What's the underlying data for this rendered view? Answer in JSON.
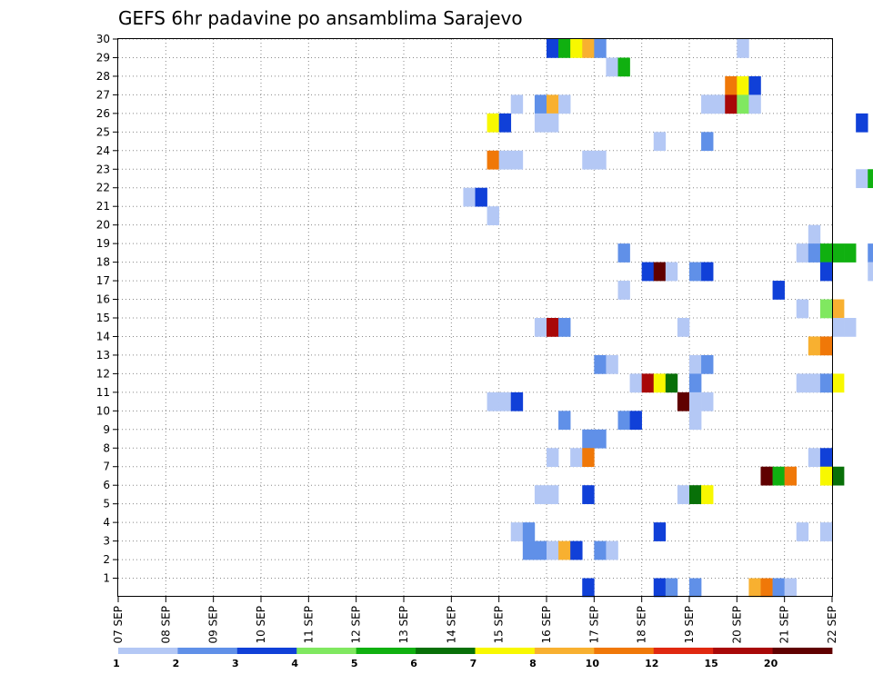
{
  "chart_data": {
    "type": "heatmap",
    "title": "GEFS 6hr padavine po ansamblima Sarajevo",
    "x_tick_labels": [
      "07 SEP",
      "08 SEP",
      "09 SEP",
      "10 SEP",
      "11 SEP",
      "12 SEP",
      "13 SEP",
      "14 SEP",
      "15 SEP",
      "16 SEP",
      "17 SEP",
      "18 SEP",
      "19 SEP",
      "20 SEP",
      "21 SEP",
      "22 SEP"
    ],
    "y_tick_labels": [
      "1",
      "2",
      "3",
      "4",
      "5",
      "6",
      "7",
      "8",
      "9",
      "10",
      "11",
      "12",
      "13",
      "14",
      "15",
      "16",
      "17",
      "18",
      "19",
      "20",
      "21",
      "22",
      "23",
      "24",
      "25",
      "26",
      "27",
      "28",
      "29",
      "30"
    ],
    "y_range": [
      0,
      30
    ],
    "steps_per_day": 4,
    "grid": true,
    "legend": {
      "placement": "bottom",
      "labels": [
        "1",
        "2",
        "3",
        "4",
        "5",
        "6",
        "7",
        "8",
        "10",
        "12",
        "15",
        "20"
      ],
      "colors": [
        "#b4c8f5",
        "#6090e8",
        "#1040d8",
        "#80e860",
        "#10b010",
        "#087008",
        "#f8f800",
        "#f8b030",
        "#f07808",
        "#e02810",
        "#a80808",
        "#600000"
      ]
    },
    "cells": [
      {
        "m": 30,
        "t": "16 SEP 00",
        "v": 3
      },
      {
        "m": 30,
        "t": "16 SEP 06",
        "v": 5
      },
      {
        "m": 30,
        "t": "16 SEP 12",
        "v": 7
      },
      {
        "m": 30,
        "t": "16 SEP 18",
        "v": 8
      },
      {
        "m": 30,
        "t": "17 SEP 00",
        "v": 2
      },
      {
        "m": 30,
        "t": "20 SEP 00",
        "v": 1
      },
      {
        "m": 29,
        "t": "17 SEP 06",
        "v": 1
      },
      {
        "m": 29,
        "t": "17 SEP 12",
        "v": 5
      },
      {
        "m": 28,
        "t": "19 SEP 18",
        "v": 10
      },
      {
        "m": 28,
        "t": "20 SEP 00",
        "v": 7
      },
      {
        "m": 28,
        "t": "20 SEP 06",
        "v": 3
      },
      {
        "m": 27,
        "t": "15 SEP 06",
        "v": 1
      },
      {
        "m": 27,
        "t": "15 SEP 18",
        "v": 2
      },
      {
        "m": 27,
        "t": "16 SEP 00",
        "v": 8
      },
      {
        "m": 27,
        "t": "16 SEP 06",
        "v": 1
      },
      {
        "m": 27,
        "t": "19 SEP 06",
        "v": 1
      },
      {
        "m": 27,
        "t": "19 SEP 12",
        "v": 1
      },
      {
        "m": 27,
        "t": "19 SEP 18",
        "v": 15
      },
      {
        "m": 27,
        "t": "20 SEP 00",
        "v": 4
      },
      {
        "m": 27,
        "t": "20 SEP 06",
        "v": 1
      },
      {
        "m": 26,
        "t": "14 SEP 18",
        "v": 7
      },
      {
        "m": 26,
        "t": "15 SEP 00",
        "v": 3
      },
      {
        "m": 26,
        "t": "15 SEP 18",
        "v": 1
      },
      {
        "m": 26,
        "t": "16 SEP 00",
        "v": 1
      },
      {
        "m": 26,
        "t": "22 SEP 12",
        "v": 3
      },
      {
        "m": 25,
        "t": "18 SEP 06",
        "v": 1
      },
      {
        "m": 25,
        "t": "19 SEP 06",
        "v": 2
      },
      {
        "m": 24,
        "t": "14 SEP 18",
        "v": 10
      },
      {
        "m": 24,
        "t": "15 SEP 00",
        "v": 1
      },
      {
        "m": 24,
        "t": "15 SEP 06",
        "v": 1
      },
      {
        "m": 24,
        "t": "16 SEP 18",
        "v": 1
      },
      {
        "m": 24,
        "t": "17 SEP 00",
        "v": 1
      },
      {
        "m": 23,
        "t": "22 SEP 12",
        "v": 1
      },
      {
        "m": 23,
        "t": "22 SEP 18",
        "v": 5
      },
      {
        "m": 22,
        "t": "14 SEP 06",
        "v": 1
      },
      {
        "m": 22,
        "t": "14 SEP 12",
        "v": 3
      },
      {
        "m": 21,
        "t": "14 SEP 18",
        "v": 1
      },
      {
        "m": 20,
        "t": "21 SEP 12",
        "v": 1
      },
      {
        "m": 19,
        "t": "17 SEP 12",
        "v": 2
      },
      {
        "m": 19,
        "t": "21 SEP 06",
        "v": 1
      },
      {
        "m": 19,
        "t": "21 SEP 12",
        "v": 2
      },
      {
        "m": 19,
        "t": "21 SEP 18",
        "v": 5
      },
      {
        "m": 19,
        "t": "22 SEP 00",
        "v": 5
      },
      {
        "m": 19,
        "t": "22 SEP 06",
        "v": 5
      },
      {
        "m": 19,
        "t": "22 SEP 18",
        "v": 2
      },
      {
        "m": 18,
        "t": "18 SEP 00",
        "v": 3
      },
      {
        "m": 18,
        "t": "18 SEP 06",
        "v": 20
      },
      {
        "m": 18,
        "t": "18 SEP 12",
        "v": 1
      },
      {
        "m": 18,
        "t": "19 SEP 00",
        "v": 2
      },
      {
        "m": 18,
        "t": "19 SEP 06",
        "v": 3
      },
      {
        "m": 18,
        "t": "21 SEP 18",
        "v": 3
      },
      {
        "m": 18,
        "t": "22 SEP 18",
        "v": 1
      },
      {
        "m": 17,
        "t": "17 SEP 12",
        "v": 1
      },
      {
        "m": 17,
        "t": "20 SEP 18",
        "v": 3
      },
      {
        "m": 16,
        "t": "21 SEP 06",
        "v": 1
      },
      {
        "m": 16,
        "t": "21 SEP 18",
        "v": 4
      },
      {
        "m": 16,
        "t": "22 SEP 00",
        "v": 8
      },
      {
        "m": 15,
        "t": "15 SEP 18",
        "v": 1
      },
      {
        "m": 15,
        "t": "16 SEP 00",
        "v": 15
      },
      {
        "m": 15,
        "t": "16 SEP 06",
        "v": 2
      },
      {
        "m": 15,
        "t": "18 SEP 18",
        "v": 1
      },
      {
        "m": 15,
        "t": "22 SEP 00",
        "v": 1
      },
      {
        "m": 15,
        "t": "22 SEP 06",
        "v": 1
      },
      {
        "m": 14,
        "t": "21 SEP 12",
        "v": 8
      },
      {
        "m": 14,
        "t": "21 SEP 18",
        "v": 10
      },
      {
        "m": 13,
        "t": "17 SEP 00",
        "v": 2
      },
      {
        "m": 13,
        "t": "17 SEP 06",
        "v": 1
      },
      {
        "m": 13,
        "t": "19 SEP 00",
        "v": 1
      },
      {
        "m": 13,
        "t": "19 SEP 06",
        "v": 2
      },
      {
        "m": 12,
        "t": "17 SEP 18",
        "v": 1
      },
      {
        "m": 12,
        "t": "18 SEP 00",
        "v": 15
      },
      {
        "m": 12,
        "t": "18 SEP 06",
        "v": 7
      },
      {
        "m": 12,
        "t": "18 SEP 12",
        "v": 6
      },
      {
        "m": 12,
        "t": "19 SEP 00",
        "v": 2
      },
      {
        "m": 12,
        "t": "21 SEP 06",
        "v": 1
      },
      {
        "m": 12,
        "t": "21 SEP 12",
        "v": 1
      },
      {
        "m": 12,
        "t": "21 SEP 18",
        "v": 2
      },
      {
        "m": 12,
        "t": "22 SEP 00",
        "v": 7
      },
      {
        "m": 11,
        "t": "14 SEP 18",
        "v": 1
      },
      {
        "m": 11,
        "t": "15 SEP 00",
        "v": 1
      },
      {
        "m": 11,
        "t": "15 SEP 06",
        "v": 3
      },
      {
        "m": 11,
        "t": "18 SEP 18",
        "v": 20
      },
      {
        "m": 11,
        "t": "19 SEP 00",
        "v": 1
      },
      {
        "m": 11,
        "t": "19 SEP 06",
        "v": 1
      },
      {
        "m": 10,
        "t": "16 SEP 06",
        "v": 2
      },
      {
        "m": 10,
        "t": "17 SEP 12",
        "v": 2
      },
      {
        "m": 10,
        "t": "17 SEP 18",
        "v": 3
      },
      {
        "m": 10,
        "t": "19 SEP 00",
        "v": 1
      },
      {
        "m": 9,
        "t": "16 SEP 18",
        "v": 2
      },
      {
        "m": 9,
        "t": "17 SEP 00",
        "v": 2
      },
      {
        "m": 8,
        "t": "16 SEP 00",
        "v": 1
      },
      {
        "m": 8,
        "t": "16 SEP 12",
        "v": 1
      },
      {
        "m": 8,
        "t": "16 SEP 18",
        "v": 10
      },
      {
        "m": 8,
        "t": "21 SEP 12",
        "v": 1
      },
      {
        "m": 8,
        "t": "21 SEP 18",
        "v": 3
      },
      {
        "m": 7,
        "t": "20 SEP 12",
        "v": 20
      },
      {
        "m": 7,
        "t": "20 SEP 18",
        "v": 5
      },
      {
        "m": 7,
        "t": "21 SEP 00",
        "v": 10
      },
      {
        "m": 7,
        "t": "21 SEP 18",
        "v": 7
      },
      {
        "m": 7,
        "t": "22 SEP 00",
        "v": 6
      },
      {
        "m": 6,
        "t": "15 SEP 18",
        "v": 1
      },
      {
        "m": 6,
        "t": "16 SEP 00",
        "v": 1
      },
      {
        "m": 6,
        "t": "16 SEP 18",
        "v": 3
      },
      {
        "m": 6,
        "t": "18 SEP 18",
        "v": 1
      },
      {
        "m": 6,
        "t": "19 SEP 00",
        "v": 6
      },
      {
        "m": 6,
        "t": "19 SEP 06",
        "v": 7
      },
      {
        "m": 4,
        "t": "15 SEP 06",
        "v": 1
      },
      {
        "m": 4,
        "t": "15 SEP 12",
        "v": 2
      },
      {
        "m": 4,
        "t": "18 SEP 06",
        "v": 3
      },
      {
        "m": 4,
        "t": "21 SEP 06",
        "v": 1
      },
      {
        "m": 4,
        "t": "21 SEP 18",
        "v": 1
      },
      {
        "m": 3,
        "t": "15 SEP 12",
        "v": 2
      },
      {
        "m": 3,
        "t": "15 SEP 18",
        "v": 2
      },
      {
        "m": 3,
        "t": "16 SEP 00",
        "v": 1
      },
      {
        "m": 3,
        "t": "16 SEP 06",
        "v": 8
      },
      {
        "m": 3,
        "t": "16 SEP 12",
        "v": 3
      },
      {
        "m": 3,
        "t": "17 SEP 00",
        "v": 2
      },
      {
        "m": 3,
        "t": "17 SEP 06",
        "v": 1
      },
      {
        "m": 1,
        "t": "16 SEP 18",
        "v": 3
      },
      {
        "m": 1,
        "t": "18 SEP 06",
        "v": 3
      },
      {
        "m": 1,
        "t": "18 SEP 12",
        "v": 2
      },
      {
        "m": 1,
        "t": "19 SEP 00",
        "v": 2
      },
      {
        "m": 1,
        "t": "20 SEP 06",
        "v": 8
      },
      {
        "m": 1,
        "t": "20 SEP 12",
        "v": 10
      },
      {
        "m": 1,
        "t": "20 SEP 18",
        "v": 2
      },
      {
        "m": 1,
        "t": "21 SEP 00",
        "v": 1
      }
    ]
  }
}
